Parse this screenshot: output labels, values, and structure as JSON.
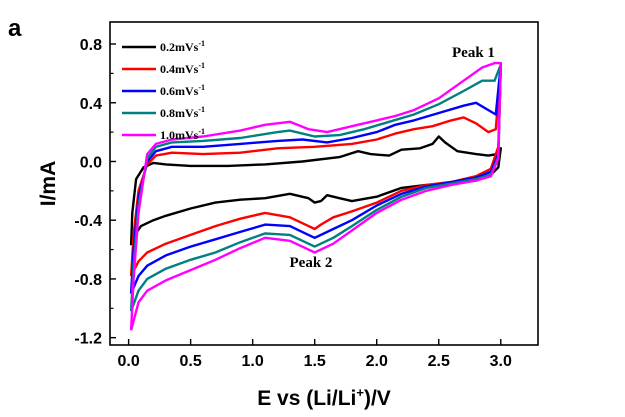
{
  "panel_letter": "a",
  "chart_data": {
    "type": "line",
    "title": "",
    "xlabel": "E vs (Li/Li+)/V",
    "xlabel_parts": {
      "prefix": "E vs (Li/Li",
      "sup": "+",
      "suffix": ")/V"
    },
    "ylabel": "I/mA",
    "xlim": [
      -0.15,
      3.3
    ],
    "ylim": [
      -1.25,
      0.95
    ],
    "xticks": [
      "0.0",
      "0.5",
      "1.0",
      "1.5",
      "2.0",
      "2.5",
      "3.0"
    ],
    "yticks": [
      "0.8",
      "0.4",
      "0.0",
      "-0.4",
      "-0.8",
      "-1.2"
    ],
    "grid": false,
    "legend_position": "top-left",
    "annotations": [
      {
        "text": "Peak 1",
        "x": 2.78,
        "y": 0.71
      },
      {
        "text": "Peak 2",
        "x": 1.47,
        "y": -0.72
      }
    ],
    "series": [
      {
        "name": "0.2mVs-1",
        "unit_base": "0.2mVs",
        "unit_sup": "-1",
        "color": "#000000",
        "points": [
          [
            0.02,
            -0.57
          ],
          [
            0.03,
            -0.35
          ],
          [
            0.06,
            -0.12
          ],
          [
            0.12,
            -0.04
          ],
          [
            0.2,
            -0.01
          ],
          [
            0.3,
            -0.02
          ],
          [
            0.5,
            -0.03
          ],
          [
            0.8,
            -0.03
          ],
          [
            1.1,
            -0.02
          ],
          [
            1.4,
            0.0
          ],
          [
            1.7,
            0.03
          ],
          [
            1.85,
            0.07
          ],
          [
            1.95,
            0.05
          ],
          [
            2.1,
            0.04
          ],
          [
            2.2,
            0.08
          ],
          [
            2.35,
            0.09
          ],
          [
            2.45,
            0.12
          ],
          [
            2.5,
            0.17
          ],
          [
            2.55,
            0.13
          ],
          [
            2.65,
            0.07
          ],
          [
            2.8,
            0.05
          ],
          [
            2.9,
            0.04
          ],
          [
            2.97,
            0.05
          ],
          [
            3.0,
            0.09
          ],
          [
            2.98,
            -0.04
          ],
          [
            2.92,
            -0.09
          ],
          [
            2.8,
            -0.13
          ],
          [
            2.6,
            -0.15
          ],
          [
            2.4,
            -0.16
          ],
          [
            2.2,
            -0.18
          ],
          [
            2.0,
            -0.24
          ],
          [
            1.8,
            -0.27
          ],
          [
            1.7,
            -0.25
          ],
          [
            1.6,
            -0.23
          ],
          [
            1.55,
            -0.27
          ],
          [
            1.5,
            -0.28
          ],
          [
            1.45,
            -0.25
          ],
          [
            1.3,
            -0.22
          ],
          [
            1.1,
            -0.25
          ],
          [
            0.9,
            -0.26
          ],
          [
            0.7,
            -0.28
          ],
          [
            0.5,
            -0.32
          ],
          [
            0.3,
            -0.37
          ],
          [
            0.2,
            -0.4
          ],
          [
            0.1,
            -0.44
          ],
          [
            0.05,
            -0.5
          ],
          [
            0.02,
            -0.57
          ]
        ]
      },
      {
        "name": "0.4mVs-1",
        "unit_base": "0.4mVs",
        "unit_sup": "-1",
        "color": "#ff0000",
        "points": [
          [
            0.02,
            -0.78
          ],
          [
            0.04,
            -0.5
          ],
          [
            0.08,
            -0.2
          ],
          [
            0.15,
            -0.02
          ],
          [
            0.22,
            0.04
          ],
          [
            0.35,
            0.06
          ],
          [
            0.6,
            0.05
          ],
          [
            0.9,
            0.06
          ],
          [
            1.2,
            0.09
          ],
          [
            1.5,
            0.1
          ],
          [
            1.8,
            0.12
          ],
          [
            2.0,
            0.15
          ],
          [
            2.15,
            0.19
          ],
          [
            2.3,
            0.22
          ],
          [
            2.45,
            0.24
          ],
          [
            2.6,
            0.28
          ],
          [
            2.7,
            0.3
          ],
          [
            2.8,
            0.26
          ],
          [
            2.9,
            0.2
          ],
          [
            2.96,
            0.22
          ],
          [
            3.0,
            0.65
          ],
          [
            2.98,
            0.1
          ],
          [
            2.92,
            -0.05
          ],
          [
            2.8,
            -0.1
          ],
          [
            2.6,
            -0.14
          ],
          [
            2.4,
            -0.16
          ],
          [
            2.2,
            -0.2
          ],
          [
            2.0,
            -0.28
          ],
          [
            1.8,
            -0.34
          ],
          [
            1.65,
            -0.38
          ],
          [
            1.55,
            -0.43
          ],
          [
            1.5,
            -0.46
          ],
          [
            1.45,
            -0.44
          ],
          [
            1.3,
            -0.38
          ],
          [
            1.1,
            -0.35
          ],
          [
            0.9,
            -0.39
          ],
          [
            0.7,
            -0.44
          ],
          [
            0.5,
            -0.5
          ],
          [
            0.3,
            -0.56
          ],
          [
            0.15,
            -0.62
          ],
          [
            0.08,
            -0.68
          ],
          [
            0.02,
            -0.78
          ]
        ]
      },
      {
        "name": "0.6mVs-1",
        "unit_base": "0.6mVs",
        "unit_sup": "-1",
        "color": "#0000ff",
        "points": [
          [
            0.02,
            -0.9
          ],
          [
            0.04,
            -0.6
          ],
          [
            0.08,
            -0.25
          ],
          [
            0.15,
            0.0
          ],
          [
            0.22,
            0.07
          ],
          [
            0.35,
            0.1
          ],
          [
            0.6,
            0.1
          ],
          [
            0.9,
            0.12
          ],
          [
            1.2,
            0.14
          ],
          [
            1.4,
            0.15
          ],
          [
            1.6,
            0.13
          ],
          [
            1.8,
            0.16
          ],
          [
            2.0,
            0.2
          ],
          [
            2.15,
            0.25
          ],
          [
            2.3,
            0.28
          ],
          [
            2.5,
            0.33
          ],
          [
            2.7,
            0.38
          ],
          [
            2.8,
            0.4
          ],
          [
            2.9,
            0.35
          ],
          [
            2.96,
            0.32
          ],
          [
            3.0,
            0.66
          ],
          [
            2.98,
            0.05
          ],
          [
            2.92,
            -0.07
          ],
          [
            2.8,
            -0.11
          ],
          [
            2.6,
            -0.14
          ],
          [
            2.4,
            -0.17
          ],
          [
            2.2,
            -0.22
          ],
          [
            2.0,
            -0.3
          ],
          [
            1.8,
            -0.4
          ],
          [
            1.65,
            -0.46
          ],
          [
            1.5,
            -0.52
          ],
          [
            1.45,
            -0.5
          ],
          [
            1.3,
            -0.44
          ],
          [
            1.1,
            -0.43
          ],
          [
            0.9,
            -0.48
          ],
          [
            0.7,
            -0.53
          ],
          [
            0.5,
            -0.58
          ],
          [
            0.3,
            -0.64
          ],
          [
            0.15,
            -0.71
          ],
          [
            0.08,
            -0.78
          ],
          [
            0.02,
            -0.9
          ]
        ]
      },
      {
        "name": "0.8mVs-1",
        "unit_base": "0.8mVs",
        "unit_sup": "-1",
        "color": "#008080",
        "points": [
          [
            0.02,
            -1.02
          ],
          [
            0.04,
            -0.7
          ],
          [
            0.08,
            -0.3
          ],
          [
            0.15,
            0.02
          ],
          [
            0.22,
            0.1
          ],
          [
            0.35,
            0.13
          ],
          [
            0.6,
            0.14
          ],
          [
            0.9,
            0.16
          ],
          [
            1.2,
            0.2
          ],
          [
            1.3,
            0.21
          ],
          [
            1.5,
            0.17
          ],
          [
            1.7,
            0.18
          ],
          [
            1.9,
            0.22
          ],
          [
            2.1,
            0.27
          ],
          [
            2.3,
            0.32
          ],
          [
            2.5,
            0.39
          ],
          [
            2.7,
            0.48
          ],
          [
            2.85,
            0.55
          ],
          [
            2.95,
            0.55
          ],
          [
            3.0,
            0.66
          ],
          [
            2.98,
            0.03
          ],
          [
            2.92,
            -0.09
          ],
          [
            2.8,
            -0.12
          ],
          [
            2.6,
            -0.15
          ],
          [
            2.4,
            -0.18
          ],
          [
            2.2,
            -0.24
          ],
          [
            2.0,
            -0.33
          ],
          [
            1.8,
            -0.44
          ],
          [
            1.65,
            -0.52
          ],
          [
            1.5,
            -0.58
          ],
          [
            1.45,
            -0.56
          ],
          [
            1.3,
            -0.5
          ],
          [
            1.1,
            -0.49
          ],
          [
            0.9,
            -0.55
          ],
          [
            0.7,
            -0.62
          ],
          [
            0.5,
            -0.67
          ],
          [
            0.3,
            -0.73
          ],
          [
            0.15,
            -0.8
          ],
          [
            0.08,
            -0.88
          ],
          [
            0.02,
            -1.02
          ]
        ]
      },
      {
        "name": "1.0mVs-1",
        "unit_base": "1.0mVs",
        "unit_sup": "-1",
        "color": "#ff00ff",
        "points": [
          [
            0.02,
            -1.15
          ],
          [
            0.04,
            -0.8
          ],
          [
            0.08,
            -0.35
          ],
          [
            0.15,
            0.05
          ],
          [
            0.22,
            0.12
          ],
          [
            0.35,
            0.15
          ],
          [
            0.6,
            0.17
          ],
          [
            0.9,
            0.21
          ],
          [
            1.1,
            0.25
          ],
          [
            1.3,
            0.27
          ],
          [
            1.45,
            0.22
          ],
          [
            1.6,
            0.2
          ],
          [
            1.8,
            0.24
          ],
          [
            2.0,
            0.28
          ],
          [
            2.15,
            0.31
          ],
          [
            2.3,
            0.35
          ],
          [
            2.5,
            0.43
          ],
          [
            2.7,
            0.55
          ],
          [
            2.85,
            0.64
          ],
          [
            2.95,
            0.67
          ],
          [
            3.0,
            0.67
          ],
          [
            2.98,
            0.02
          ],
          [
            2.92,
            -0.1
          ],
          [
            2.8,
            -0.13
          ],
          [
            2.6,
            -0.16
          ],
          [
            2.4,
            -0.2
          ],
          [
            2.2,
            -0.26
          ],
          [
            2.0,
            -0.35
          ],
          [
            1.8,
            -0.47
          ],
          [
            1.65,
            -0.56
          ],
          [
            1.5,
            -0.62
          ],
          [
            1.45,
            -0.6
          ],
          [
            1.3,
            -0.54
          ],
          [
            1.1,
            -0.52
          ],
          [
            0.9,
            -0.59
          ],
          [
            0.7,
            -0.67
          ],
          [
            0.5,
            -0.74
          ],
          [
            0.3,
            -0.81
          ],
          [
            0.15,
            -0.88
          ],
          [
            0.08,
            -0.96
          ],
          [
            0.02,
            -1.15
          ]
        ]
      }
    ]
  }
}
